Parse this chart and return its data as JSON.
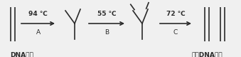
{
  "bg_color": "#f0f0f0",
  "line_color": "#2a2a2a",
  "arrow_color": "#2a2a2a",
  "label_94": "94 ℃",
  "label_A": "A",
  "label_55": "55 ℃",
  "label_B": "B",
  "label_72": "72 ℃",
  "label_C": "C",
  "label_left": "DNA样品",
  "label_right": "两个DNA分子",
  "fig_width": 3.39,
  "fig_height": 0.8,
  "dpi": 100
}
